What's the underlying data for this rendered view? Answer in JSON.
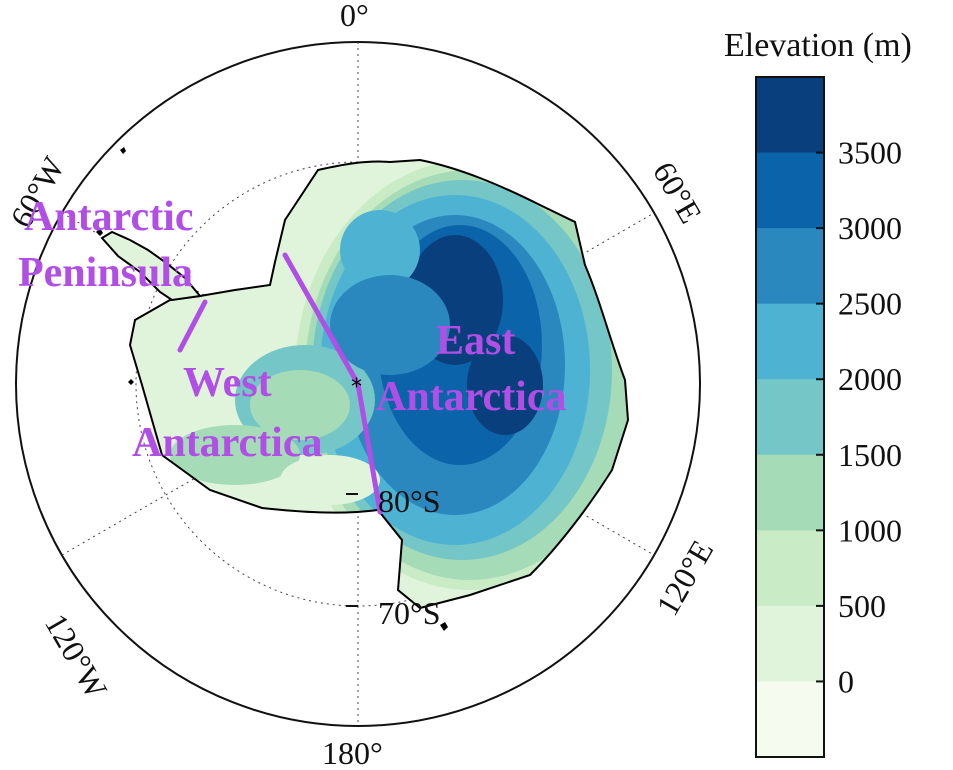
{
  "map": {
    "meridian_labels": {
      "top": "0°",
      "bottom": "180°",
      "upper_left": "60°W",
      "lower_left": "120°W",
      "upper_right": "60°E",
      "lower_right": "120°E"
    },
    "latitude_labels": {
      "inner": "80°S",
      "outer": "70°S"
    },
    "region_labels": {
      "peninsula_line1": "Antarctic",
      "peninsula_line2": "Peninsula",
      "west_line1": "West",
      "west_line2": "Antarctica",
      "east_line1": "East",
      "east_line2": "Antarctica"
    },
    "colors": {
      "region_label": "#b04ee6",
      "boundary_line": "#b04ee6",
      "coastline": "#000000"
    }
  },
  "colorbar": {
    "title": "Elevation (m)",
    "tick_labels": [
      "3500",
      "3000",
      "2500",
      "2000",
      "1500",
      "1000",
      "500",
      "0"
    ],
    "colors": [
      "#0a3f7e",
      "#0b64a9",
      "#2a88bf",
      "#4eb2d3",
      "#75c6c6",
      "#a5dbb7",
      "#c9ebc5",
      "#e0f3db",
      "#f5fbef"
    ]
  }
}
